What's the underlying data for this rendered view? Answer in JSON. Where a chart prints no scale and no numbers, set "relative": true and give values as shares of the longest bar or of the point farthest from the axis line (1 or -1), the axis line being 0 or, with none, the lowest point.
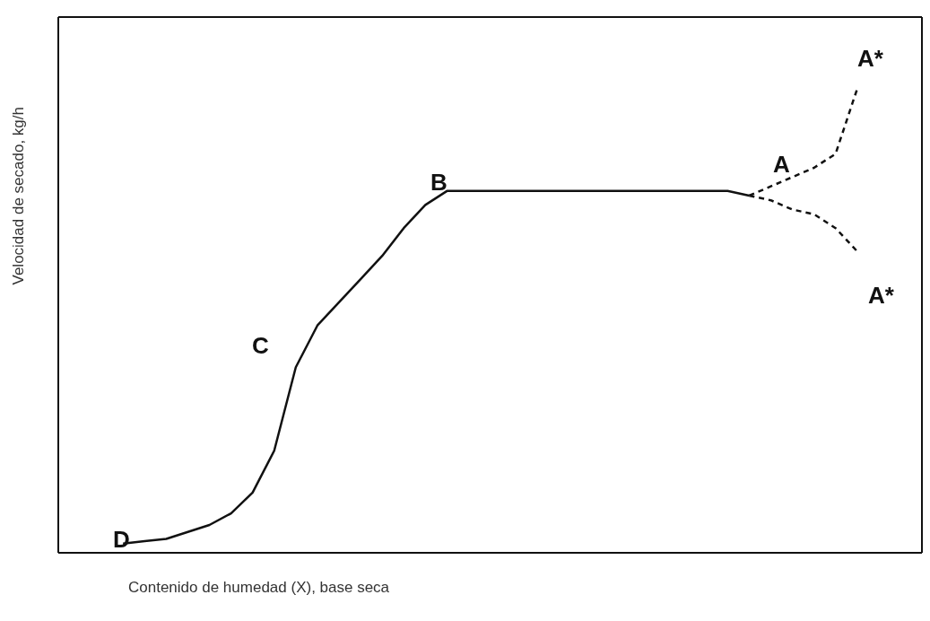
{
  "chart_data": {
    "type": "line",
    "relative": true,
    "xlabel": "Contenido de humedad (X), base seca",
    "ylabel": "Velocidad de secado, kg/h",
    "categories": [
      null,
      null,
      null,
      null,
      null,
      null,
      null,
      null,
      null,
      null,
      null,
      null,
      null,
      null,
      null,
      null,
      null,
      null,
      null,
      null,
      null,
      null,
      null,
      null,
      null,
      null,
      null,
      null,
      null,
      null,
      null,
      null,
      null,
      null,
      null,
      null,
      null,
      null,
      null,
      null,
      null
    ],
    "series": [
      {
        "color": "#111111",
        "values": [
          null,
          null,
          null,
          0.02,
          0.025,
          0.03,
          0.045,
          0.06,
          0.085,
          0.13,
          0.22,
          0.4,
          0.49,
          0.54,
          0.59,
          0.64,
          0.7,
          0.75,
          0.78,
          0.78,
          0.78,
          0.78,
          0.78,
          0.78,
          0.78,
          0.78,
          0.78,
          0.78,
          0.78,
          0.78,
          0.78,
          0.78,
          0.77,
          null,
          null,
          null,
          null,
          null,
          null,
          null,
          null
        ]
      },
      {
        "color": "#111111",
        "line_style": "dashed",
        "values": [
          null,
          null,
          null,
          null,
          null,
          null,
          null,
          null,
          null,
          null,
          null,
          null,
          null,
          null,
          null,
          null,
          null,
          null,
          null,
          null,
          null,
          null,
          null,
          null,
          null,
          null,
          null,
          null,
          null,
          null,
          null,
          null,
          0.77,
          0.79,
          0.81,
          0.83,
          0.86,
          1.0,
          null,
          null,
          null
        ]
      },
      {
        "color": "#111111",
        "line_style": "dashed",
        "values": [
          null,
          null,
          null,
          null,
          null,
          null,
          null,
          null,
          null,
          null,
          null,
          null,
          null,
          null,
          null,
          null,
          null,
          null,
          null,
          null,
          null,
          null,
          null,
          null,
          null,
          null,
          null,
          null,
          null,
          null,
          null,
          null,
          0.77,
          0.76,
          0.74,
          0.73,
          0.7,
          0.65,
          null,
          null,
          null
        ]
      }
    ],
    "annotations": [
      "A*",
      "A",
      "B",
      "C",
      "D",
      "A*"
    ],
    "marker": "none",
    "line_style": "solid",
    "grid": false,
    "legend": false
  }
}
